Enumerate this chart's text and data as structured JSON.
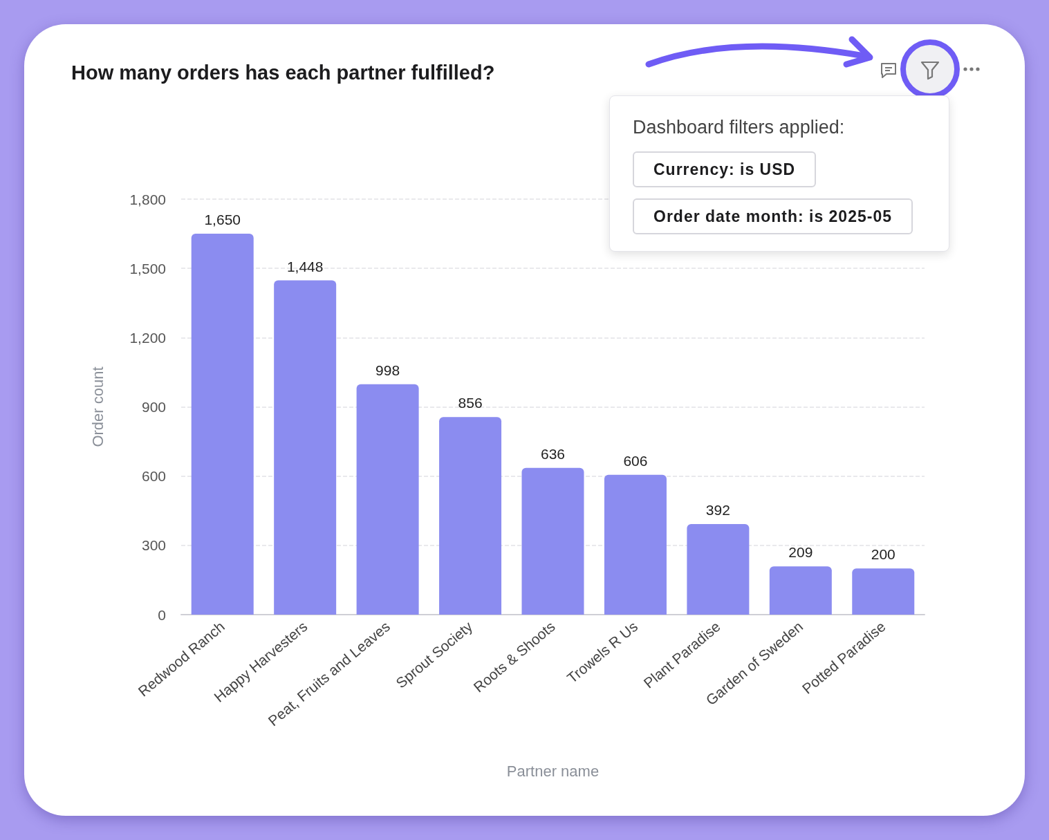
{
  "chart_data": {
    "type": "bar",
    "title": "How many orders has each partner fulfilled?",
    "xlabel": "Partner name",
    "ylabel": "Order count",
    "categories": [
      "Redwood Ranch",
      "Happy Harvesters",
      "Peat, Fruits and Leaves",
      "Sprout Society",
      "Roots & Shoots",
      "Trowels R Us",
      "Plant Paradise",
      "Garden of Sweden",
      "Potted Paradise"
    ],
    "values": [
      1650,
      1448,
      998,
      856,
      636,
      606,
      392,
      209,
      200
    ],
    "value_labels": [
      "1,650",
      "1,448",
      "998",
      "856",
      "636",
      "606",
      "392",
      "209",
      "200"
    ],
    "color": "#8b8cf0",
    "ylim": [
      0,
      1800
    ],
    "yticks": [
      0,
      300,
      600,
      900,
      {
        "value": 1200,
        "label": "1,200"
      },
      {
        "value": 1500,
        "label": "1,500"
      },
      {
        "value": 1800,
        "label": "1,800"
      }
    ],
    "grid": "y",
    "annotations": [
      "Dashboard filters applied:",
      "Currency: is USD",
      "Order date month: is 2025-05"
    ]
  }
}
